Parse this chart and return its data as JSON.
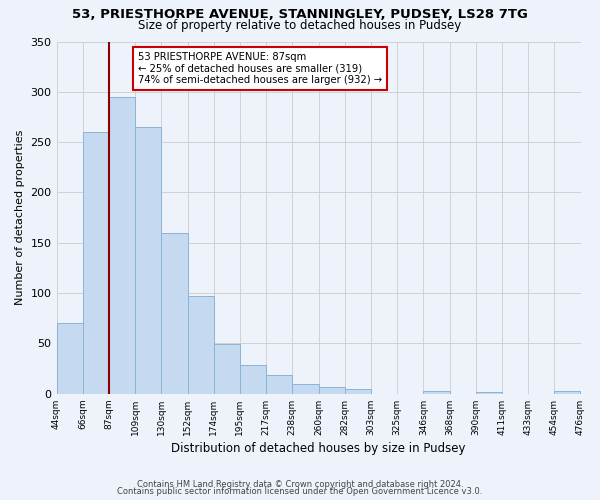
{
  "title": "53, PRIESTHORPE AVENUE, STANNINGLEY, PUDSEY, LS28 7TG",
  "subtitle": "Size of property relative to detached houses in Pudsey",
  "xlabel": "Distribution of detached houses by size in Pudsey",
  "ylabel": "Number of detached properties",
  "bin_edges": [
    44,
    66,
    87,
    109,
    130,
    152,
    174,
    195,
    217,
    238,
    260,
    282,
    303,
    325,
    346,
    368,
    390,
    411,
    433,
    454,
    476
  ],
  "bin_heights": [
    70,
    260,
    295,
    265,
    160,
    97,
    49,
    29,
    19,
    10,
    7,
    5,
    0,
    0,
    3,
    0,
    2,
    0,
    0,
    3
  ],
  "bar_facecolor": "#c5d9f1",
  "bar_edgecolor": "#8ab4d4",
  "property_line_x": 87,
  "property_line_color": "#8b0000",
  "annotation_box_text": "53 PRIESTHORPE AVENUE: 87sqm\n← 25% of detached houses are smaller (319)\n74% of semi-detached houses are larger (932) →",
  "ylim": [
    0,
    350
  ],
  "yticks": [
    0,
    50,
    100,
    150,
    200,
    250,
    300,
    350
  ],
  "grid_color": "#cccccc",
  "background_color": "#eef2fb",
  "footer_line1": "Contains HM Land Registry data © Crown copyright and database right 2024.",
  "footer_line2": "Contains public sector information licensed under the Open Government Licence v3.0.",
  "tick_labels": [
    "44sqm",
    "66sqm",
    "87sqm",
    "109sqm",
    "130sqm",
    "152sqm",
    "174sqm",
    "195sqm",
    "217sqm",
    "238sqm",
    "260sqm",
    "282sqm",
    "303sqm",
    "325sqm",
    "346sqm",
    "368sqm",
    "390sqm",
    "411sqm",
    "433sqm",
    "454sqm",
    "476sqm"
  ]
}
